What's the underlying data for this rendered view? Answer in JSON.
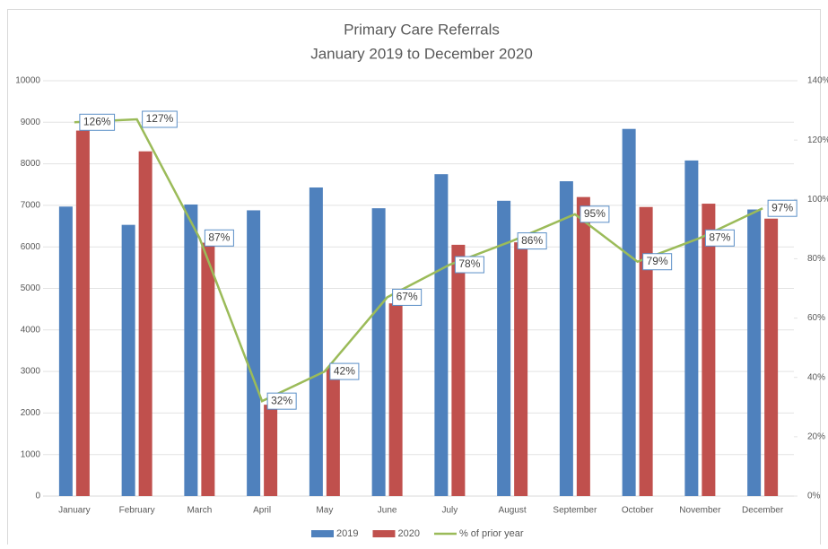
{
  "chart_data": {
    "type": "bar",
    "title": "Primary Care Referrals",
    "subtitle": "January 2019 to December 2020",
    "categories": [
      "January",
      "February",
      "March",
      "April",
      "May",
      "June",
      "July",
      "August",
      "September",
      "October",
      "November",
      "December"
    ],
    "series": [
      {
        "name": "2019",
        "color": "#4f81bd",
        "type": "bar",
        "values": [
          6970,
          6530,
          7020,
          6880,
          7430,
          6930,
          7750,
          7110,
          7580,
          8840,
          8080,
          6900
        ]
      },
      {
        "name": "2020",
        "color": "#c0504d",
        "type": "bar",
        "values": [
          8800,
          8300,
          6100,
          2200,
          3100,
          4640,
          6050,
          6110,
          7200,
          6960,
          7040,
          6680
        ]
      },
      {
        "name": "% of prior year",
        "color": "#9bbb59",
        "type": "line",
        "axis": "y2",
        "values": [
          126,
          127,
          87,
          32,
          42,
          67,
          78,
          86,
          95,
          79,
          87,
          97
        ],
        "value_labels": [
          "126%",
          "127%",
          "87%",
          "32%",
          "42%",
          "67%",
          "78%",
          "86%",
          "95%",
          "79%",
          "87%",
          "97%"
        ]
      }
    ],
    "ylim": [
      0,
      10000
    ],
    "yticks": [
      0,
      1000,
      2000,
      3000,
      4000,
      5000,
      6000,
      7000,
      8000,
      9000,
      10000
    ],
    "y2lim": [
      0,
      140
    ],
    "y2ticks": [
      {
        "value": 0,
        "label": "0%"
      },
      {
        "value": 20,
        "label": "20%"
      },
      {
        "value": 40,
        "label": "40%"
      },
      {
        "value": 60,
        "label": "60%"
      },
      {
        "value": 80,
        "label": "80%"
      },
      {
        "value": 100,
        "label": "100%"
      },
      {
        "value": 120,
        "label": "120%"
      },
      {
        "value": 140,
        "label": "140%"
      }
    ],
    "grid": true,
    "legend": "bottom"
  }
}
